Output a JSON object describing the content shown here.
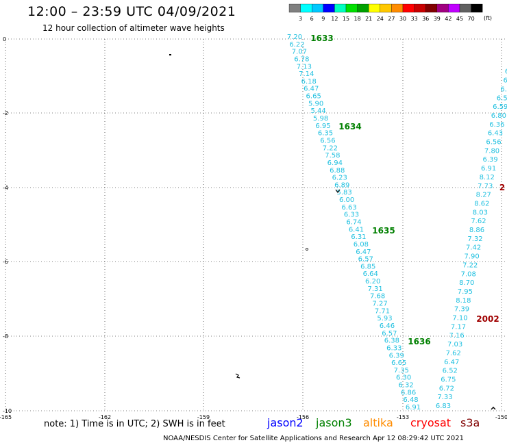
{
  "header": {
    "title": "12:00 – 23:59 UTC 04/09/2021",
    "subtitle": "12 hour collection of altimeter wave heights"
  },
  "colorbar": {
    "colors": [
      "#808080",
      "#00ffff",
      "#00c8ff",
      "#0000ff",
      "#00ffbf",
      "#00e000",
      "#00a000",
      "#ffff00",
      "#ffc800",
      "#ff8c00",
      "#ff0000",
      "#c80000",
      "#800000",
      "#a00080",
      "#c000ff",
      "#606060",
      "#000000"
    ],
    "labels": [
      "3",
      "6",
      "9",
      "12",
      "15",
      "18",
      "21",
      "24",
      "27",
      "30",
      "33",
      "36",
      "39",
      "42",
      "45",
      "70"
    ],
    "units": "(ft)"
  },
  "axes": {
    "x_ticks": [
      "-165",
      "-162",
      "-159",
      "-156",
      "-153",
      "-150"
    ],
    "y_ticks": [
      "0",
      "-2",
      "-4",
      "-6",
      "-8",
      "-10"
    ]
  },
  "track_time_labels": [
    {
      "text": "1633",
      "color": "#008000"
    },
    {
      "text": "1634",
      "color": "#008000"
    },
    {
      "text": "1635",
      "color": "#008000"
    },
    {
      "text": "1636",
      "color": "#008000"
    },
    {
      "text": "2002",
      "color": "#a00000"
    },
    {
      "text": "2",
      "color": "#a00000"
    }
  ],
  "track_a": [
    "7.20",
    "6.22",
    "7.07",
    "6.78",
    "7.13",
    "7.14",
    "6.18",
    "6.47",
    "6.65",
    "5.90",
    "5.44",
    "5.98",
    "6.95",
    "6.35",
    "6.56",
    "7.22",
    "7.58",
    "6.94",
    "6.88",
    "6.23",
    "6.89",
    "5.83",
    "6.00",
    "6.63",
    "6.33",
    "6.74",
    "6.41",
    "6.31",
    "6.08",
    "6.47",
    "6.57",
    "6.85",
    "6.64",
    "6.20",
    "7.31",
    "7.68",
    "7.27",
    "7.71",
    "5.93",
    "6.46",
    "6.57",
    "6.38",
    "6.33",
    "6.39",
    "6.65",
    "7.35",
    "6.30",
    "6.32",
    "6.86",
    "6.48",
    "6.91"
  ],
  "track_b": [
    "6.83",
    "7.33",
    "6.72",
    "6.75",
    "6.52",
    "6.47",
    "7.62",
    "7.03",
    "7.16",
    "7.17",
    "7.10",
    "7.39",
    "8.18",
    "7.95",
    "8.70",
    "7.08",
    "7.22",
    "7.90",
    "7.42",
    "7.32",
    "8.86",
    "7.62",
    "8.03",
    "8.62",
    "8.27",
    "7.73",
    "8.12",
    "6.91",
    "6.39",
    "7.80",
    "6.56",
    "6.43",
    "6.36",
    "6.80",
    "6.59",
    "6.5",
    "6.",
    "6",
    "6",
    "6",
    "6"
  ],
  "satellites": [
    {
      "name": "jason2",
      "color": "#0000ff"
    },
    {
      "name": "jason3",
      "color": "#008000"
    },
    {
      "name": "altika",
      "color": "#ff8c00"
    },
    {
      "name": "cryosat",
      "color": "#ff0000"
    },
    {
      "name": "s3a",
      "color": "#800000"
    }
  ],
  "note": "note:  1) Time is in UTC;  2) SWH is in feet",
  "footer": "NOAA/NESDIS Center for Satellite Applications and Research    Apr 12 08:29:42 UTC 2021"
}
